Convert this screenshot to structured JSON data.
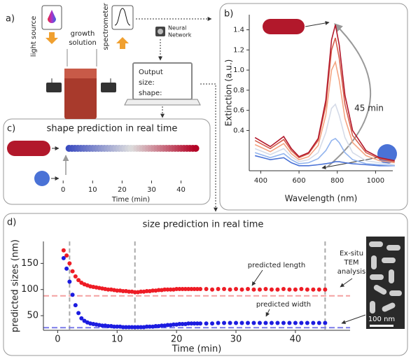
{
  "panel_labels": [
    "a)",
    "b)",
    "c)",
    "d)"
  ],
  "schematic": {
    "light_source": "light source",
    "growth_solution": [
      "growth",
      "solution"
    ],
    "spectrometer": "spectrometer",
    "neural_network": [
      "Neural",
      "Network"
    ],
    "output": [
      "Output",
      "size:",
      "shape:"
    ]
  },
  "chart_data": [
    {
      "type": "line",
      "xlabel": "Wavelength (nm)",
      "ylabel": "Extinction (a.u.)",
      "annotation": "45 min",
      "x": [
        370,
        450,
        520,
        560,
        600,
        650,
        700,
        740,
        770,
        790,
        810,
        840,
        880,
        950,
        1020,
        1100
      ],
      "series": [
        {
          "color": "#4a72d6",
          "values": [
            0.15,
            0.11,
            0.13,
            0.08,
            0.05,
            0.05,
            0.06,
            0.07,
            0.08,
            0.09,
            0.09,
            0.08,
            0.07,
            0.06,
            0.05,
            0.05
          ]
        },
        {
          "color": "#92b4ee",
          "values": [
            0.18,
            0.13,
            0.17,
            0.11,
            0.07,
            0.08,
            0.12,
            0.2,
            0.3,
            0.32,
            0.28,
            0.18,
            0.11,
            0.07,
            0.06,
            0.05
          ]
        },
        {
          "color": "#d5dbe8",
          "values": [
            0.22,
            0.16,
            0.22,
            0.14,
            0.09,
            0.11,
            0.18,
            0.38,
            0.62,
            0.66,
            0.55,
            0.33,
            0.18,
            0.1,
            0.08,
            0.06
          ]
        },
        {
          "color": "#f4a582",
          "values": [
            0.26,
            0.19,
            0.27,
            0.17,
            0.11,
            0.14,
            0.25,
            0.55,
            1.0,
            1.08,
            0.9,
            0.52,
            0.28,
            0.15,
            0.1,
            0.08
          ]
        },
        {
          "color": "#d6604d",
          "values": [
            0.3,
            0.22,
            0.31,
            0.2,
            0.13,
            0.17,
            0.3,
            0.65,
            1.2,
            1.32,
            1.12,
            0.66,
            0.35,
            0.18,
            0.12,
            0.09
          ]
        },
        {
          "color": "#b2182b",
          "values": [
            0.33,
            0.24,
            0.34,
            0.22,
            0.14,
            0.18,
            0.32,
            0.7,
            1.3,
            1.45,
            1.25,
            0.75,
            0.4,
            0.2,
            0.13,
            0.1
          ]
        }
      ],
      "xlim": [
        340,
        1090
      ],
      "ylim": [
        0,
        1.55
      ],
      "xticks": [
        400,
        600,
        800,
        1000
      ],
      "yticks": [
        0.4,
        0.6,
        0.8,
        {
          "value": 1,
          "label": "1.0"
        },
        1.2,
        1.4
      ]
    },
    {
      "type": "scatter",
      "title": "shape prediction in real time",
      "xlabel": "Time (min)",
      "x": [
        2,
        3,
        4,
        5,
        6,
        7,
        8,
        9,
        10,
        11,
        12,
        13,
        14,
        15,
        16,
        17,
        18,
        19,
        20,
        21,
        22,
        23,
        24,
        25,
        26,
        27,
        28,
        29,
        30,
        31,
        32,
        33,
        34,
        35,
        36,
        37,
        38,
        39,
        40,
        41,
        42,
        43,
        44,
        45
      ],
      "colormap": [
        "#3b4cc0",
        "#dddddd",
        "#b40426"
      ],
      "xlim": [
        -1,
        47
      ],
      "xticks": [
        0,
        10,
        20,
        30,
        40
      ]
    },
    {
      "type": "scatter",
      "title": "size prediction in real time",
      "xlabel": "Time (min)",
      "ylabel": "predicted sizes (nm)",
      "x": [
        1,
        1.5,
        2,
        2.5,
        3,
        3.5,
        4,
        4.5,
        5,
        5.5,
        6,
        6.5,
        7,
        7.5,
        8,
        8.5,
        9,
        9.5,
        10,
        10.5,
        11,
        11.5,
        12,
        12.5,
        13,
        13.5,
        14,
        14.5,
        15,
        15.5,
        16,
        16.5,
        17,
        17.5,
        18,
        18.5,
        19,
        19.5,
        20,
        20.5,
        21,
        21.5,
        22,
        22.5,
        23,
        23.5,
        24,
        25,
        26,
        27,
        28,
        29,
        30,
        31,
        32,
        33,
        34,
        35,
        36,
        37,
        38,
        39,
        40,
        41,
        42,
        43,
        44,
        45
      ],
      "series": [
        {
          "name": "predicted length",
          "color": "#ee1c25",
          "values": [
            175,
            165,
            150,
            135,
            125,
            118,
            113,
            110,
            108,
            106,
            105,
            104,
            103,
            102,
            101,
            100,
            100,
            99,
            98,
            98,
            97,
            97,
            96,
            96,
            95,
            95,
            96,
            96,
            97,
            97,
            98,
            98,
            99,
            99,
            100,
            100,
            100,
            100,
            101,
            101,
            101,
            101,
            101,
            101,
            101,
            101,
            101,
            101,
            100,
            101,
            101,
            100,
            101,
            100,
            101,
            100,
            100,
            101,
            100,
            100,
            101,
            100,
            100,
            101,
            100,
            100,
            100,
            100
          ]
        },
        {
          "name": "predicted width",
          "color": "#1c1ce0",
          "values": [
            160,
            140,
            115,
            90,
            70,
            55,
            45,
            40,
            37,
            35,
            34,
            33,
            32,
            31,
            31,
            30,
            30,
            29,
            29,
            29,
            28,
            28,
            28,
            28,
            28,
            28,
            28,
            28,
            29,
            29,
            29,
            30,
            30,
            31,
            31,
            32,
            32,
            33,
            33,
            34,
            34,
            34,
            35,
            35,
            35,
            35,
            35,
            35,
            35,
            36,
            36,
            36,
            36,
            36,
            36,
            36,
            36,
            36,
            36,
            36,
            36,
            36,
            36,
            36,
            36,
            36,
            36,
            36
          ]
        }
      ],
      "hlines": [
        {
          "value": 88,
          "color": "#f4a0a0"
        },
        {
          "value": 27,
          "color": "#7a7ae8"
        }
      ],
      "vlines": [
        2,
        13,
        45
      ],
      "tem_label": [
        "Ex-situ",
        "TEM",
        "analysis"
      ],
      "scale_bar": "100 nm",
      "xlim": [
        -2.4,
        49.2
      ],
      "ylim": [
        22,
        192
      ],
      "xticks": [
        0,
        10,
        20,
        30,
        40
      ],
      "yticks": [
        50,
        100,
        150
      ]
    }
  ]
}
